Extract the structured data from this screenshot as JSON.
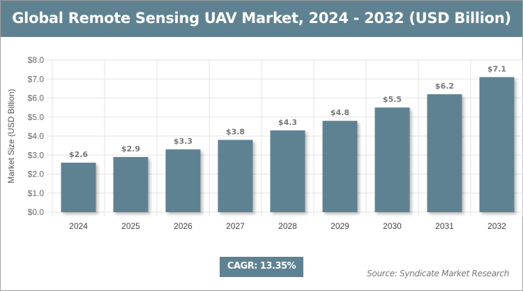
{
  "title": "Global Remote Sensing UAV Market, 2024 - 2032 (USD Billion)",
  "cagr_label": "CAGR: 13.35%",
  "source": "Source: Syndicate Market Research",
  "chart_data": {
    "type": "bar",
    "title": "Global Remote Sensing UAV Market, 2024 - 2032 (USD Billion)",
    "categories": [
      "2024",
      "2025",
      "2026",
      "2027",
      "2028",
      "2029",
      "2030",
      "2031",
      "2032"
    ],
    "values": [
      2.6,
      2.9,
      3.3,
      3.8,
      4.3,
      4.8,
      5.5,
      6.2,
      7.1
    ],
    "data_labels": [
      "$2.6",
      "$2.9",
      "$3.3",
      "$3.8",
      "$4.3",
      "$4.8",
      "$5.5",
      "$6.2",
      "$7.1"
    ],
    "xlabel": "",
    "ylabel": "Market Size (USD Billion)",
    "ylim": [
      0,
      8
    ],
    "yticks": [
      "$0.0",
      "$1.0",
      "$2.0",
      "$3.0",
      "$4.0",
      "$5.0",
      "$6.0",
      "$7.0",
      "$8.0"
    ],
    "grid": true,
    "bar_color": "#5f8292"
  }
}
